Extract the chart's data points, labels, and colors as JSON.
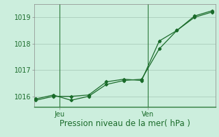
{
  "bg_color": "#cceedd",
  "grid_color": "#aaccbb",
  "line_color": "#1a6b2a",
  "xlabel": "Pression niveau de la mer( hPa )",
  "ylim": [
    1015.6,
    1019.5
  ],
  "yticks": [
    1016,
    1017,
    1018,
    1019
  ],
  "series1_x": [
    0,
    1,
    2,
    3,
    4,
    5,
    6,
    7,
    8,
    9,
    10
  ],
  "series1_y": [
    1015.85,
    1016.0,
    1016.0,
    1016.05,
    1016.55,
    1016.65,
    1016.6,
    1018.1,
    1018.5,
    1019.05,
    1019.25
  ],
  "series2_x": [
    0,
    1,
    2,
    3,
    4,
    5,
    6,
    7,
    8,
    9,
    10
  ],
  "series2_y": [
    1015.9,
    1016.05,
    1015.85,
    1016.0,
    1016.45,
    1016.6,
    1016.65,
    1017.8,
    1018.5,
    1019.0,
    1019.2
  ],
  "jeu_x": 1.35,
  "ven_x": 6.35,
  "xlim": [
    -0.1,
    10.2
  ],
  "xlabel_fontsize": 8.5,
  "tick_fontsize": 7
}
